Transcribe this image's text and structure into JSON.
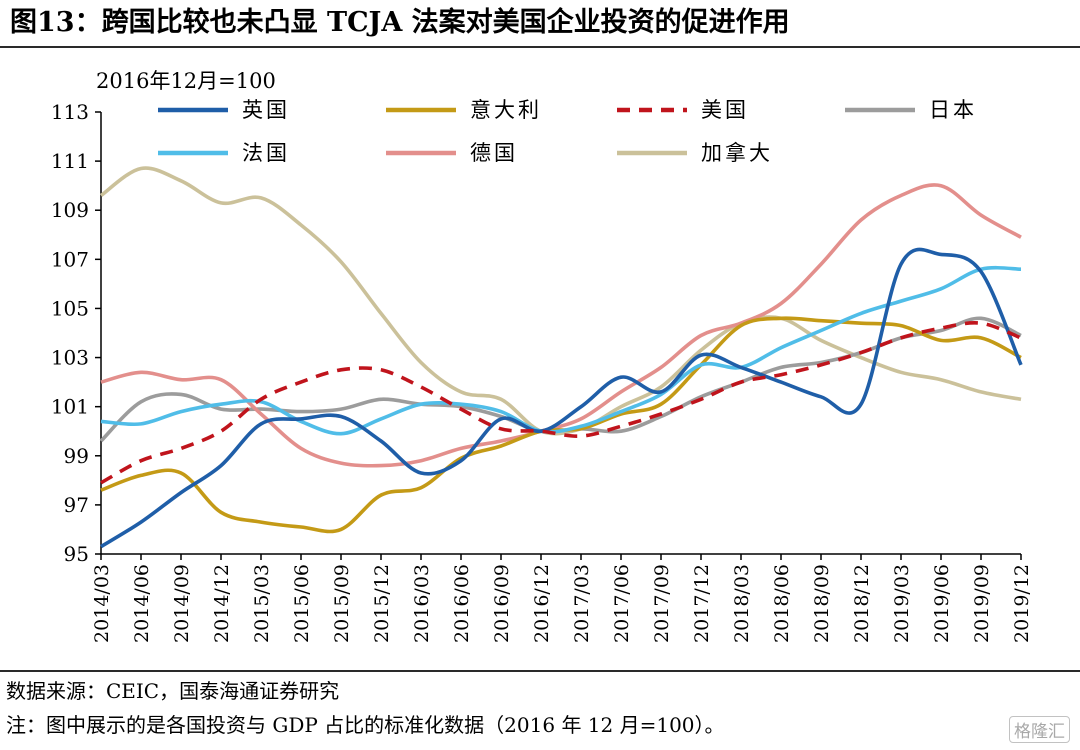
{
  "title": "图13：跨国比较也未凸显 TCJA 法案对美国企业投资的促进作用",
  "footer": {
    "source": "数据来源：CEIC，国泰海通证券研究",
    "note": "注：图中展示的是各国投资与 GDP 占比的标准化数据（2016 年 12 月=100）。"
  },
  "watermark": "格隆汇",
  "chart_data": {
    "type": "line",
    "unit_label": "2016年12月=100",
    "ylim": [
      95,
      113
    ],
    "yticks": [
      95,
      97,
      99,
      101,
      103,
      105,
      107,
      109,
      111,
      113
    ],
    "categories": [
      "2014/03",
      "2014/06",
      "2014/09",
      "2014/12",
      "2015/03",
      "2015/06",
      "2015/09",
      "2015/12",
      "2016/03",
      "2016/06",
      "2016/09",
      "2016/12",
      "2017/03",
      "2017/06",
      "2017/09",
      "2017/12",
      "2018/03",
      "2018/06",
      "2018/09",
      "2018/12",
      "2019/03",
      "2019/06",
      "2019/09",
      "2019/12"
    ],
    "series": [
      {
        "name": "英国",
        "color": "#1f5ea8",
        "dash": "solid",
        "values": [
          95.3,
          96.3,
          97.5,
          98.6,
          100.3,
          100.5,
          100.6,
          99.6,
          98.3,
          98.8,
          100.5,
          100.0,
          101.0,
          102.2,
          101.6,
          103.1,
          102.6,
          102.0,
          101.4,
          101.1,
          106.8,
          107.2,
          106.5,
          102.7
        ]
      },
      {
        "name": "意大利",
        "color": "#c49a16",
        "dash": "solid",
        "values": [
          97.6,
          98.2,
          98.3,
          96.7,
          96.3,
          96.1,
          96.0,
          97.4,
          97.7,
          98.9,
          99.4,
          100.0,
          100.1,
          100.7,
          101.1,
          102.7,
          104.3,
          104.6,
          104.5,
          104.4,
          104.3,
          103.7,
          103.8,
          103.0
        ]
      },
      {
        "name": "美国",
        "color": "#c0141c",
        "dash": "dash",
        "values": [
          97.9,
          98.8,
          99.3,
          100.0,
          101.3,
          102.0,
          102.5,
          102.5,
          101.8,
          100.9,
          100.1,
          100.0,
          99.8,
          100.2,
          100.7,
          101.3,
          102.0,
          102.3,
          102.7,
          103.2,
          103.8,
          104.2,
          104.4,
          103.8
        ]
      },
      {
        "name": "日本",
        "color": "#9c9c9c",
        "dash": "solid",
        "values": [
          99.6,
          101.2,
          101.5,
          100.9,
          100.9,
          100.8,
          100.9,
          101.3,
          101.1,
          101.0,
          100.6,
          100.0,
          100.1,
          100.0,
          100.6,
          101.4,
          102.0,
          102.6,
          102.8,
          103.2,
          103.8,
          104.1,
          104.6,
          103.9
        ]
      },
      {
        "name": "法国",
        "color": "#50bde8",
        "dash": "solid",
        "values": [
          100.4,
          100.3,
          100.8,
          101.1,
          101.2,
          100.4,
          99.9,
          100.5,
          101.1,
          101.1,
          100.8,
          100.0,
          100.2,
          100.8,
          101.5,
          102.7,
          102.6,
          103.4,
          104.1,
          104.8,
          105.3,
          105.8,
          106.6,
          106.6
        ]
      },
      {
        "name": "德国",
        "color": "#e38f8c",
        "dash": "solid",
        "values": [
          102.0,
          102.4,
          102.1,
          102.1,
          100.7,
          99.3,
          98.7,
          98.6,
          98.8,
          99.3,
          99.6,
          100.0,
          100.5,
          101.6,
          102.6,
          103.9,
          104.4,
          105.2,
          106.8,
          108.6,
          109.6,
          110.0,
          108.8,
          107.9
        ]
      },
      {
        "name": "加拿大",
        "color": "#cbc19a",
        "dash": "solid",
        "values": [
          109.6,
          110.7,
          110.2,
          109.3,
          109.5,
          108.4,
          106.9,
          104.8,
          102.8,
          101.6,
          101.3,
          100.0,
          100.1,
          101.0,
          101.8,
          103.3,
          104.4,
          104.6,
          103.7,
          103.0,
          102.4,
          102.1,
          101.6,
          101.3
        ]
      }
    ]
  }
}
